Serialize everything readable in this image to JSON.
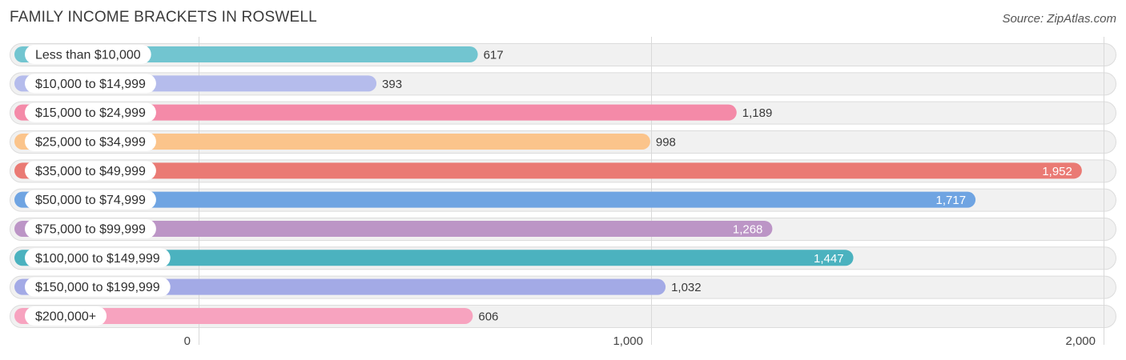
{
  "header": {
    "title": "FAMILY INCOME BRACKETS IN ROSWELL",
    "source": "Source: ZipAtlas.com"
  },
  "chart_data": {
    "type": "bar",
    "orientation": "horizontal",
    "title": "FAMILY INCOME BRACKETS IN ROSWELL",
    "xlabel": "",
    "ylabel": "",
    "xlim": [
      0,
      2000
    ],
    "xticks": [
      0,
      1000,
      2000
    ],
    "xtick_labels": [
      "0",
      "1,000",
      "2,000"
    ],
    "grid": true,
    "categories": [
      "Less than $10,000",
      "$10,000 to $14,999",
      "$15,000 to $24,999",
      "$25,000 to $34,999",
      "$35,000 to $49,999",
      "$50,000 to $74,999",
      "$75,000 to $99,999",
      "$100,000 to $149,999",
      "$150,000 to $199,999",
      "$200,000+"
    ],
    "values": [
      617,
      393,
      1189,
      998,
      1952,
      1717,
      1268,
      1447,
      1032,
      606
    ],
    "value_labels": [
      "617",
      "393",
      "1,189",
      "998",
      "1,952",
      "1,717",
      "1,268",
      "1,447",
      "1,032",
      "606"
    ],
    "colors": [
      "#72c5d0",
      "#b5bcec",
      "#f48aa8",
      "#fbc48b",
      "#ea7a74",
      "#6fa4e2",
      "#bc95c6",
      "#4bb2bf",
      "#a3aae6",
      "#f7a3bf"
    ],
    "inside_label_threshold": 1200
  }
}
